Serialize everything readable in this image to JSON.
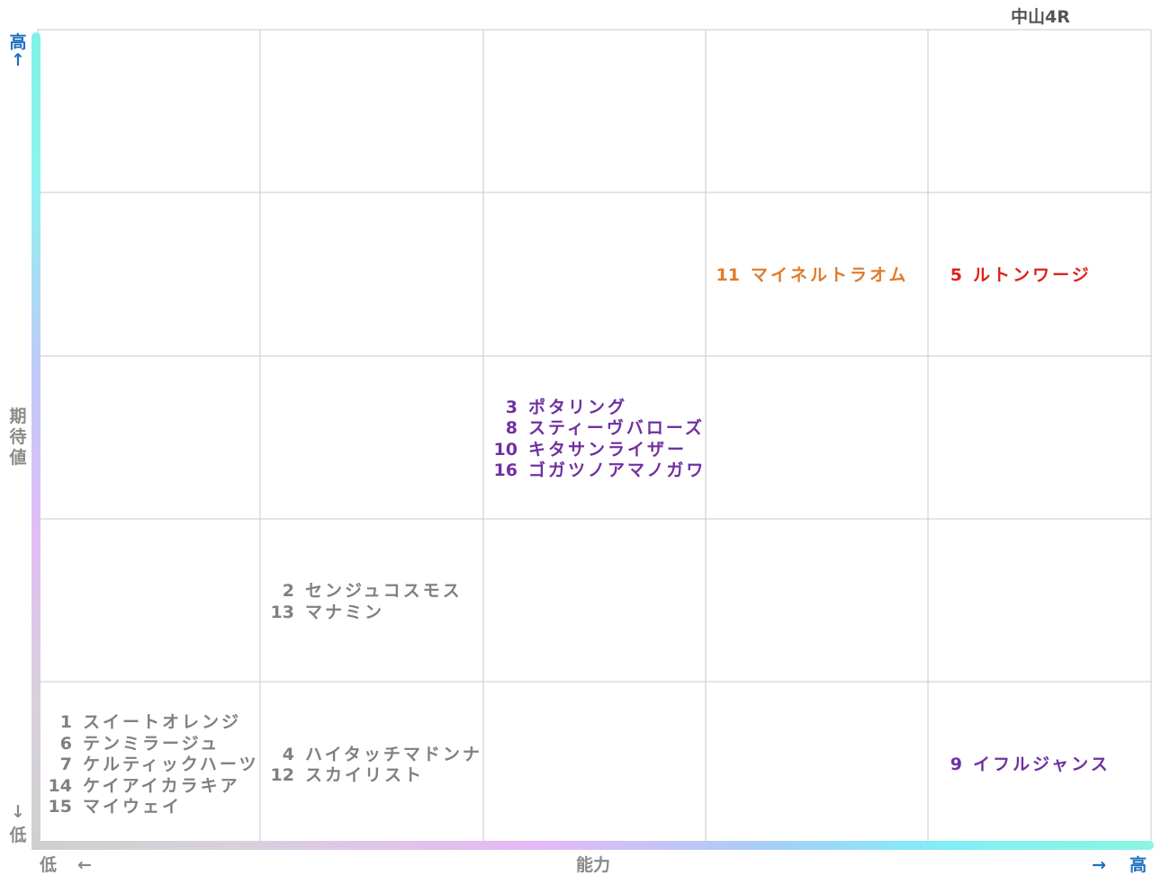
{
  "race": "中山4R",
  "axes": {
    "y_high": "高",
    "y_high_arrow": "↑",
    "y_name": "期待値",
    "y_low_arrow": "↓",
    "y_low": "低",
    "x_low": "低",
    "x_low_arrow": "←",
    "x_name": "能力",
    "x_high_arrow": "→",
    "x_high": "高"
  },
  "colors": {
    "gray": "#808080",
    "purple": "#7030a0",
    "orange": "#e07b2a",
    "red": "#e0201c"
  },
  "chart_data": {
    "type": "table",
    "title": "中山4R",
    "xlabel": "能力",
    "ylabel": "期待値",
    "columns": 5,
    "rows": 5,
    "entries": [
      {
        "col": 1,
        "row": 1,
        "color": "gray",
        "horses": [
          {
            "num": "1",
            "name": "スイートオレンジ"
          },
          {
            "num": "6",
            "name": "テンミラージュ"
          },
          {
            "num": "7",
            "name": "ケルティックハーツ"
          },
          {
            "num": "14",
            "name": "ケイアイカラキア"
          },
          {
            "num": "15",
            "name": "マイウェイ"
          }
        ]
      },
      {
        "col": 2,
        "row": 1,
        "color": "gray",
        "horses": [
          {
            "num": "4",
            "name": "ハイタッチマドンナ"
          },
          {
            "num": "12",
            "name": "スカイリスト"
          }
        ]
      },
      {
        "col": 2,
        "row": 2,
        "color": "gray",
        "horses": [
          {
            "num": "2",
            "name": "センジュコスモス"
          },
          {
            "num": "13",
            "name": "マナミン"
          }
        ]
      },
      {
        "col": 3,
        "row": 3,
        "color": "purple",
        "horses": [
          {
            "num": "3",
            "name": "ポタリング"
          },
          {
            "num": "8",
            "name": "スティーヴバローズ"
          },
          {
            "num": "10",
            "name": "キタサンライザー"
          },
          {
            "num": "16",
            "name": "ゴガツノアマノガワ"
          }
        ]
      },
      {
        "col": 4,
        "row": 4,
        "color": "orange",
        "horses": [
          {
            "num": "11",
            "name": "マイネルトラオム"
          }
        ]
      },
      {
        "col": 5,
        "row": 4,
        "color": "red",
        "horses": [
          {
            "num": "5",
            "name": "ルトンワージ"
          }
        ]
      },
      {
        "col": 5,
        "row": 1,
        "color": "purple",
        "horses": [
          {
            "num": "9",
            "name": "イフルジャンス"
          }
        ]
      }
    ]
  }
}
